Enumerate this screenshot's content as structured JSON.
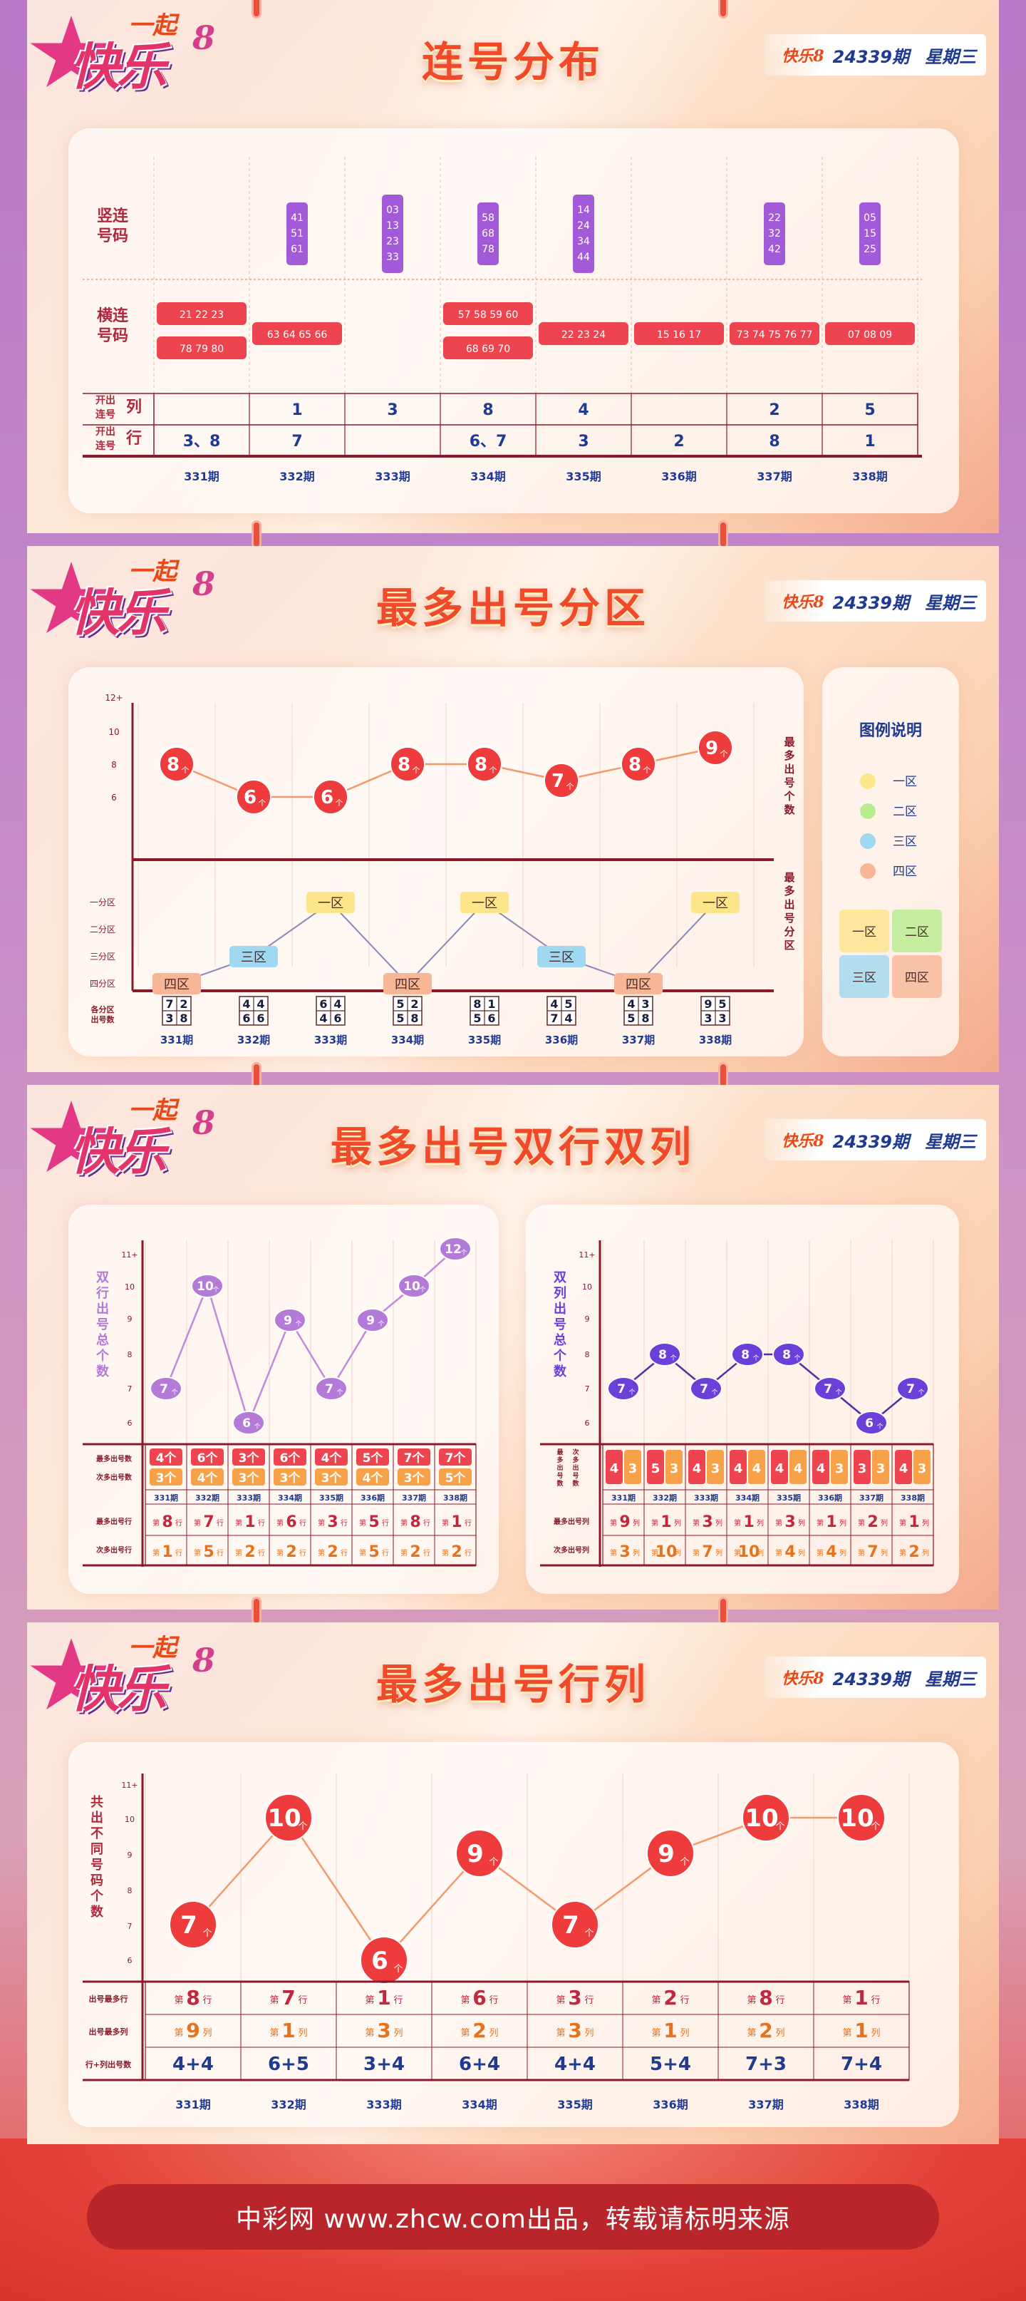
{
  "brand": {
    "logo_top": "一起",
    "logo_main": "快乐",
    "logo_eight": "8",
    "mini_logo": "快乐8"
  },
  "issue": {
    "number": "24339期",
    "weekday": "星期三"
  },
  "footer": {
    "text": "中彩网 www.zhcw.com出品，转载请标明来源"
  },
  "periods": [
    "331期",
    "332期",
    "333期",
    "334期",
    "335期",
    "336期",
    "337期",
    "338期"
  ],
  "consec": {
    "title": "连号分布",
    "row_labels": {
      "vertical": "竖连\n号码",
      "horizontal": "横连\n号码",
      "col": "开出\n连号",
      "col_unit": "列",
      "row": "开出\n连号",
      "row_unit": "行"
    },
    "vertical": [
      [],
      [
        "41",
        "51",
        "61"
      ],
      [
        "03",
        "13",
        "23",
        "33"
      ],
      [
        "58",
        "68",
        "78"
      ],
      [
        "14",
        "24",
        "34",
        "44"
      ],
      [],
      [
        "22",
        "32",
        "42"
      ],
      [
        "05",
        "15",
        "25"
      ]
    ],
    "horizontal": [
      [
        "21 22 23",
        "78 79 80"
      ],
      [
        "63 64 65 66"
      ],
      [],
      [
        "57 58 59 60",
        "68 69 70"
      ],
      [
        "22 23 24"
      ],
      [
        "15 16 17"
      ],
      [
        "73 74 75 76 77"
      ],
      [
        "07 08 09"
      ]
    ],
    "col_values": [
      "",
      "1",
      "3",
      "8",
      "4",
      "",
      "2",
      "5"
    ],
    "row_values": [
      "3、8",
      "7",
      "",
      "6、7",
      "3",
      "2",
      "8",
      "1"
    ]
  },
  "zone": {
    "title": "最多出号分区",
    "y_ticks": [
      "12+",
      "10",
      "8",
      "6"
    ],
    "zone_ticks": [
      "一分区",
      "二分区",
      "三分区",
      "四分区"
    ],
    "right_label_top": "最多出号个数",
    "right_label_bottom": "最多出号分区",
    "bottom_label": "各分区\n出号数",
    "unit": "个",
    "counts": [
      8,
      6,
      6,
      8,
      8,
      7,
      8,
      9
    ],
    "zones": [
      "四区",
      "三区",
      "一区",
      "四区",
      "一区",
      "三区",
      "四区",
      "一区"
    ],
    "grids": [
      [
        "7",
        "2",
        "3",
        "8"
      ],
      [
        "4",
        "4",
        "6",
        "6"
      ],
      [
        "6",
        "4",
        "4",
        "6"
      ],
      [
        "5",
        "2",
        "5",
        "8"
      ],
      [
        "8",
        "1",
        "5",
        "6"
      ],
      [
        "4",
        "5",
        "7",
        "4"
      ],
      [
        "4",
        "3",
        "5",
        "8"
      ],
      [
        "9",
        "5",
        "3",
        "3"
      ]
    ],
    "legend": {
      "title": "图例说明",
      "items": [
        "一区",
        "二区",
        "三区",
        "四区"
      ],
      "colors": [
        "#fde58a",
        "#b9ec8e",
        "#9fd8f0",
        "#f7b796"
      ]
    },
    "legend_grid": [
      "一区",
      "二区",
      "三区",
      "四区"
    ]
  },
  "double": {
    "title": "最多出号双行双列",
    "rows_chart": {
      "ylabel": "双行出号总个数",
      "y_ticks": [
        "11+",
        "10",
        "9",
        "8",
        "7",
        "6"
      ],
      "values": [
        7,
        10,
        6,
        9,
        7,
        9,
        10,
        12
      ],
      "labels_most": "最多出号数",
      "labels_second": "次多出号数",
      "most_counts": [
        "4",
        "6",
        "3",
        "6",
        "4",
        "5",
        "7",
        "7"
      ],
      "second_counts": [
        "3",
        "4",
        "3",
        "3",
        "3",
        "4",
        "3",
        "5"
      ],
      "most_label": "最多出号行",
      "second_label": "次多出号行",
      "most_rows": [
        "8",
        "7",
        "1",
        "6",
        "3",
        "5",
        "8",
        "1"
      ],
      "second_rows": [
        "1",
        "5",
        "2",
        "2",
        "2",
        "5",
        "2",
        "2"
      ],
      "prefix": "第",
      "suffix": "行"
    },
    "cols_chart": {
      "ylabel": "双列出号总个数",
      "y_ticks": [
        "11+",
        "10",
        "9",
        "8",
        "7",
        "6"
      ],
      "values": [
        7,
        8,
        7,
        8,
        8,
        7,
        6,
        7
      ],
      "labels_most": "最多出号数",
      "labels_second": "次多出号数",
      "pairs": [
        [
          "4",
          "3"
        ],
        [
          "5",
          "3"
        ],
        [
          "4",
          "3"
        ],
        [
          "4",
          "4"
        ],
        [
          "4",
          "4"
        ],
        [
          "4",
          "3"
        ],
        [
          "3",
          "3"
        ],
        [
          "4",
          "3"
        ]
      ],
      "most_label": "最多出号列",
      "second_label": "次多出号列",
      "most_cols": [
        "9",
        "1",
        "3",
        "1",
        "3",
        "1",
        "2",
        "1"
      ],
      "second_cols": [
        "3",
        "10",
        "7",
        "10",
        "4",
        "4",
        "7",
        "2"
      ],
      "prefix": "第",
      "suffix": "列"
    }
  },
  "rowcol": {
    "title": "最多出号行列",
    "ylabel": "共出不同号码个数",
    "y_ticks": [
      "11+",
      "10",
      "9",
      "8",
      "7",
      "6"
    ],
    "values": [
      7,
      10,
      6,
      9,
      7,
      9,
      10,
      10
    ],
    "row_label_most_row": "出号最多行",
    "row_label_most_col": "出号最多列",
    "row_label_sum": "行+列出号数",
    "most_rows": [
      "8",
      "7",
      "1",
      "6",
      "3",
      "2",
      "8",
      "1"
    ],
    "most_cols": [
      "9",
      "1",
      "3",
      "2",
      "3",
      "1",
      "2",
      "1"
    ],
    "sums": [
      "4+4",
      "6+5",
      "3+4",
      "6+4",
      "4+4",
      "5+4",
      "7+3",
      "7+4"
    ],
    "prefix": "第",
    "suffix_row": "行",
    "suffix_col": "列"
  }
}
